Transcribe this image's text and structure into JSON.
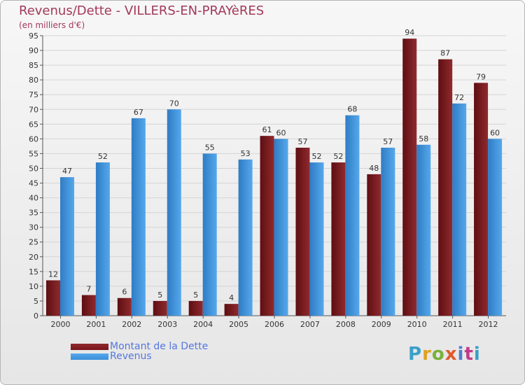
{
  "colors": {
    "dette": "#7a1418",
    "revenus": "#3b8fd9",
    "title": "#a3395a",
    "legend_text": "#5577dd"
  },
  "logo": {
    "text": "Proxiti",
    "colors": [
      "#3aa0c8",
      "#e0a020",
      "#7ab03c",
      "#e05a2a",
      "#4a7fd0",
      "#c03a8a",
      "#3aa0c8"
    ]
  },
  "chart_data": {
    "type": "bar",
    "title": "Revenus/Dette - VILLERS-EN-PRAYèRES",
    "subtitle": "(en milliers d'€)",
    "xlabel": "",
    "ylabel": "",
    "ylim": [
      0,
      95
    ],
    "ytick_step": 5,
    "grid": true,
    "categories": [
      "2000",
      "2001",
      "2002",
      "2003",
      "2004",
      "2005",
      "2006",
      "2007",
      "2008",
      "2009",
      "2010",
      "2011",
      "2012"
    ],
    "series": [
      {
        "name": "Montant de la Dette",
        "key": "dette",
        "values": [
          12,
          7,
          6,
          5,
          5,
          4,
          61,
          57,
          52,
          48,
          94,
          87,
          79
        ]
      },
      {
        "name": "Revenus",
        "key": "revenus",
        "values": [
          47,
          52,
          67,
          70,
          55,
          53,
          60,
          52,
          68,
          57,
          58,
          72,
          60
        ]
      }
    ]
  }
}
